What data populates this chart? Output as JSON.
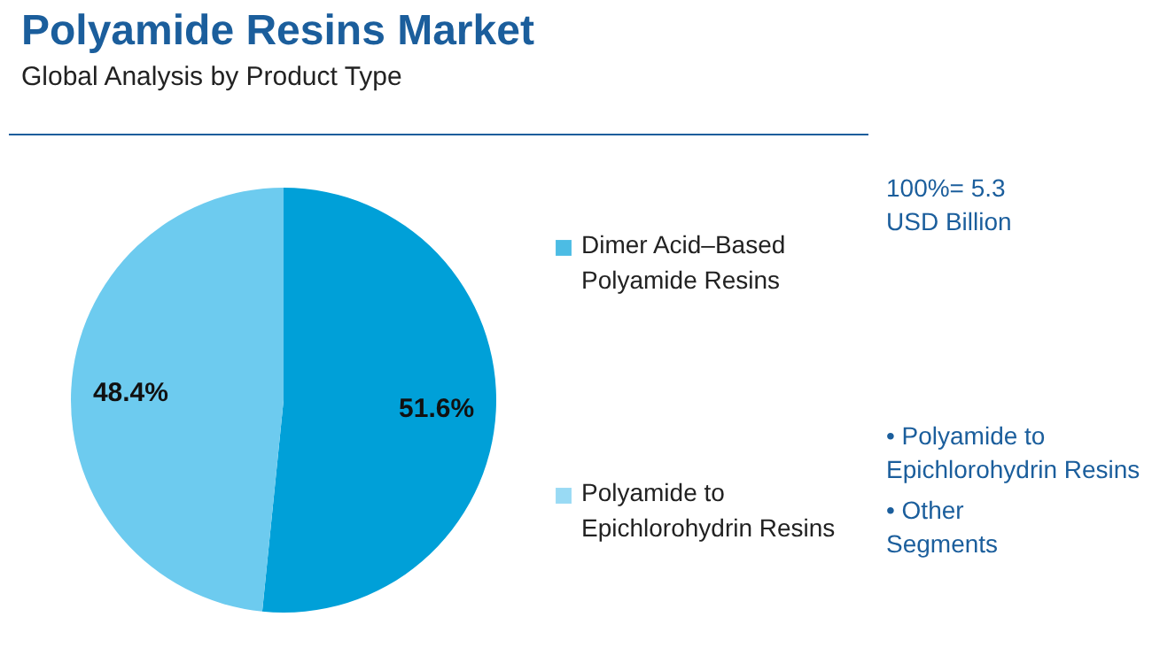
{
  "chart_data": {
    "type": "pie",
    "title": "Polyamide Resins Market",
    "subtitle": "Global Analysis by Product Type",
    "categories": [
      "Dimer Acid–Based Polyamide Resins",
      "Polyamide to Epichlorohydrin Resins"
    ],
    "values": [
      51.6,
      48.4
    ],
    "colors": [
      "#00a0d8",
      "#6dcbef"
    ],
    "value_labels": [
      "51.6%",
      "48.4%"
    ],
    "legend": "right",
    "annotations": [
      "100%= 5.3 USD Billion",
      "• Polyamide to Epichlorohydrin Resins",
      "• Other Segments"
    ]
  }
}
